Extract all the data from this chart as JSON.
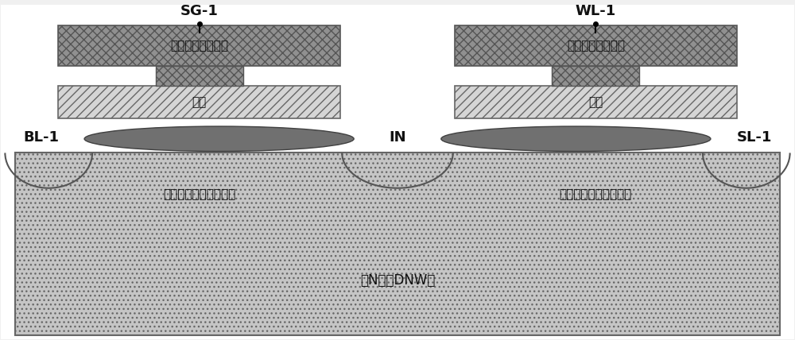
{
  "fig_width": 10.0,
  "fig_height": 4.28,
  "bg_color": "#f0f0f0",
  "substrate_color": "#c8c8c8",
  "gate_dark_color": "#909090",
  "gate_dark_hatch": "xxx",
  "floating_gate_color": "#d8d8d8",
  "floating_gate_hatch": "///",
  "diffusion_color": "#707070",
  "label_sg": "SG-1",
  "label_wl": "WL-1",
  "label_bl": "BL-1",
  "label_sl": "SL-1",
  "label_in": "IN",
  "label_select_gate": "选择栅晶体管栅极",
  "label_control_gate": "控制栅晶体管栅极",
  "label_float_left": "浮栅",
  "label_float_right": "浮栅",
  "label_threshold_left": "选择栅晶体管阈値注入",
  "label_threshold_right": "选择栅晶体管阈値注入",
  "label_dnw": "深N阱（DNW）",
  "font_size_labels": 13,
  "font_size_chinese_gate": 11,
  "font_size_chinese_float": 11,
  "font_size_chinese_sub": 11,
  "font_size_dnw": 12
}
